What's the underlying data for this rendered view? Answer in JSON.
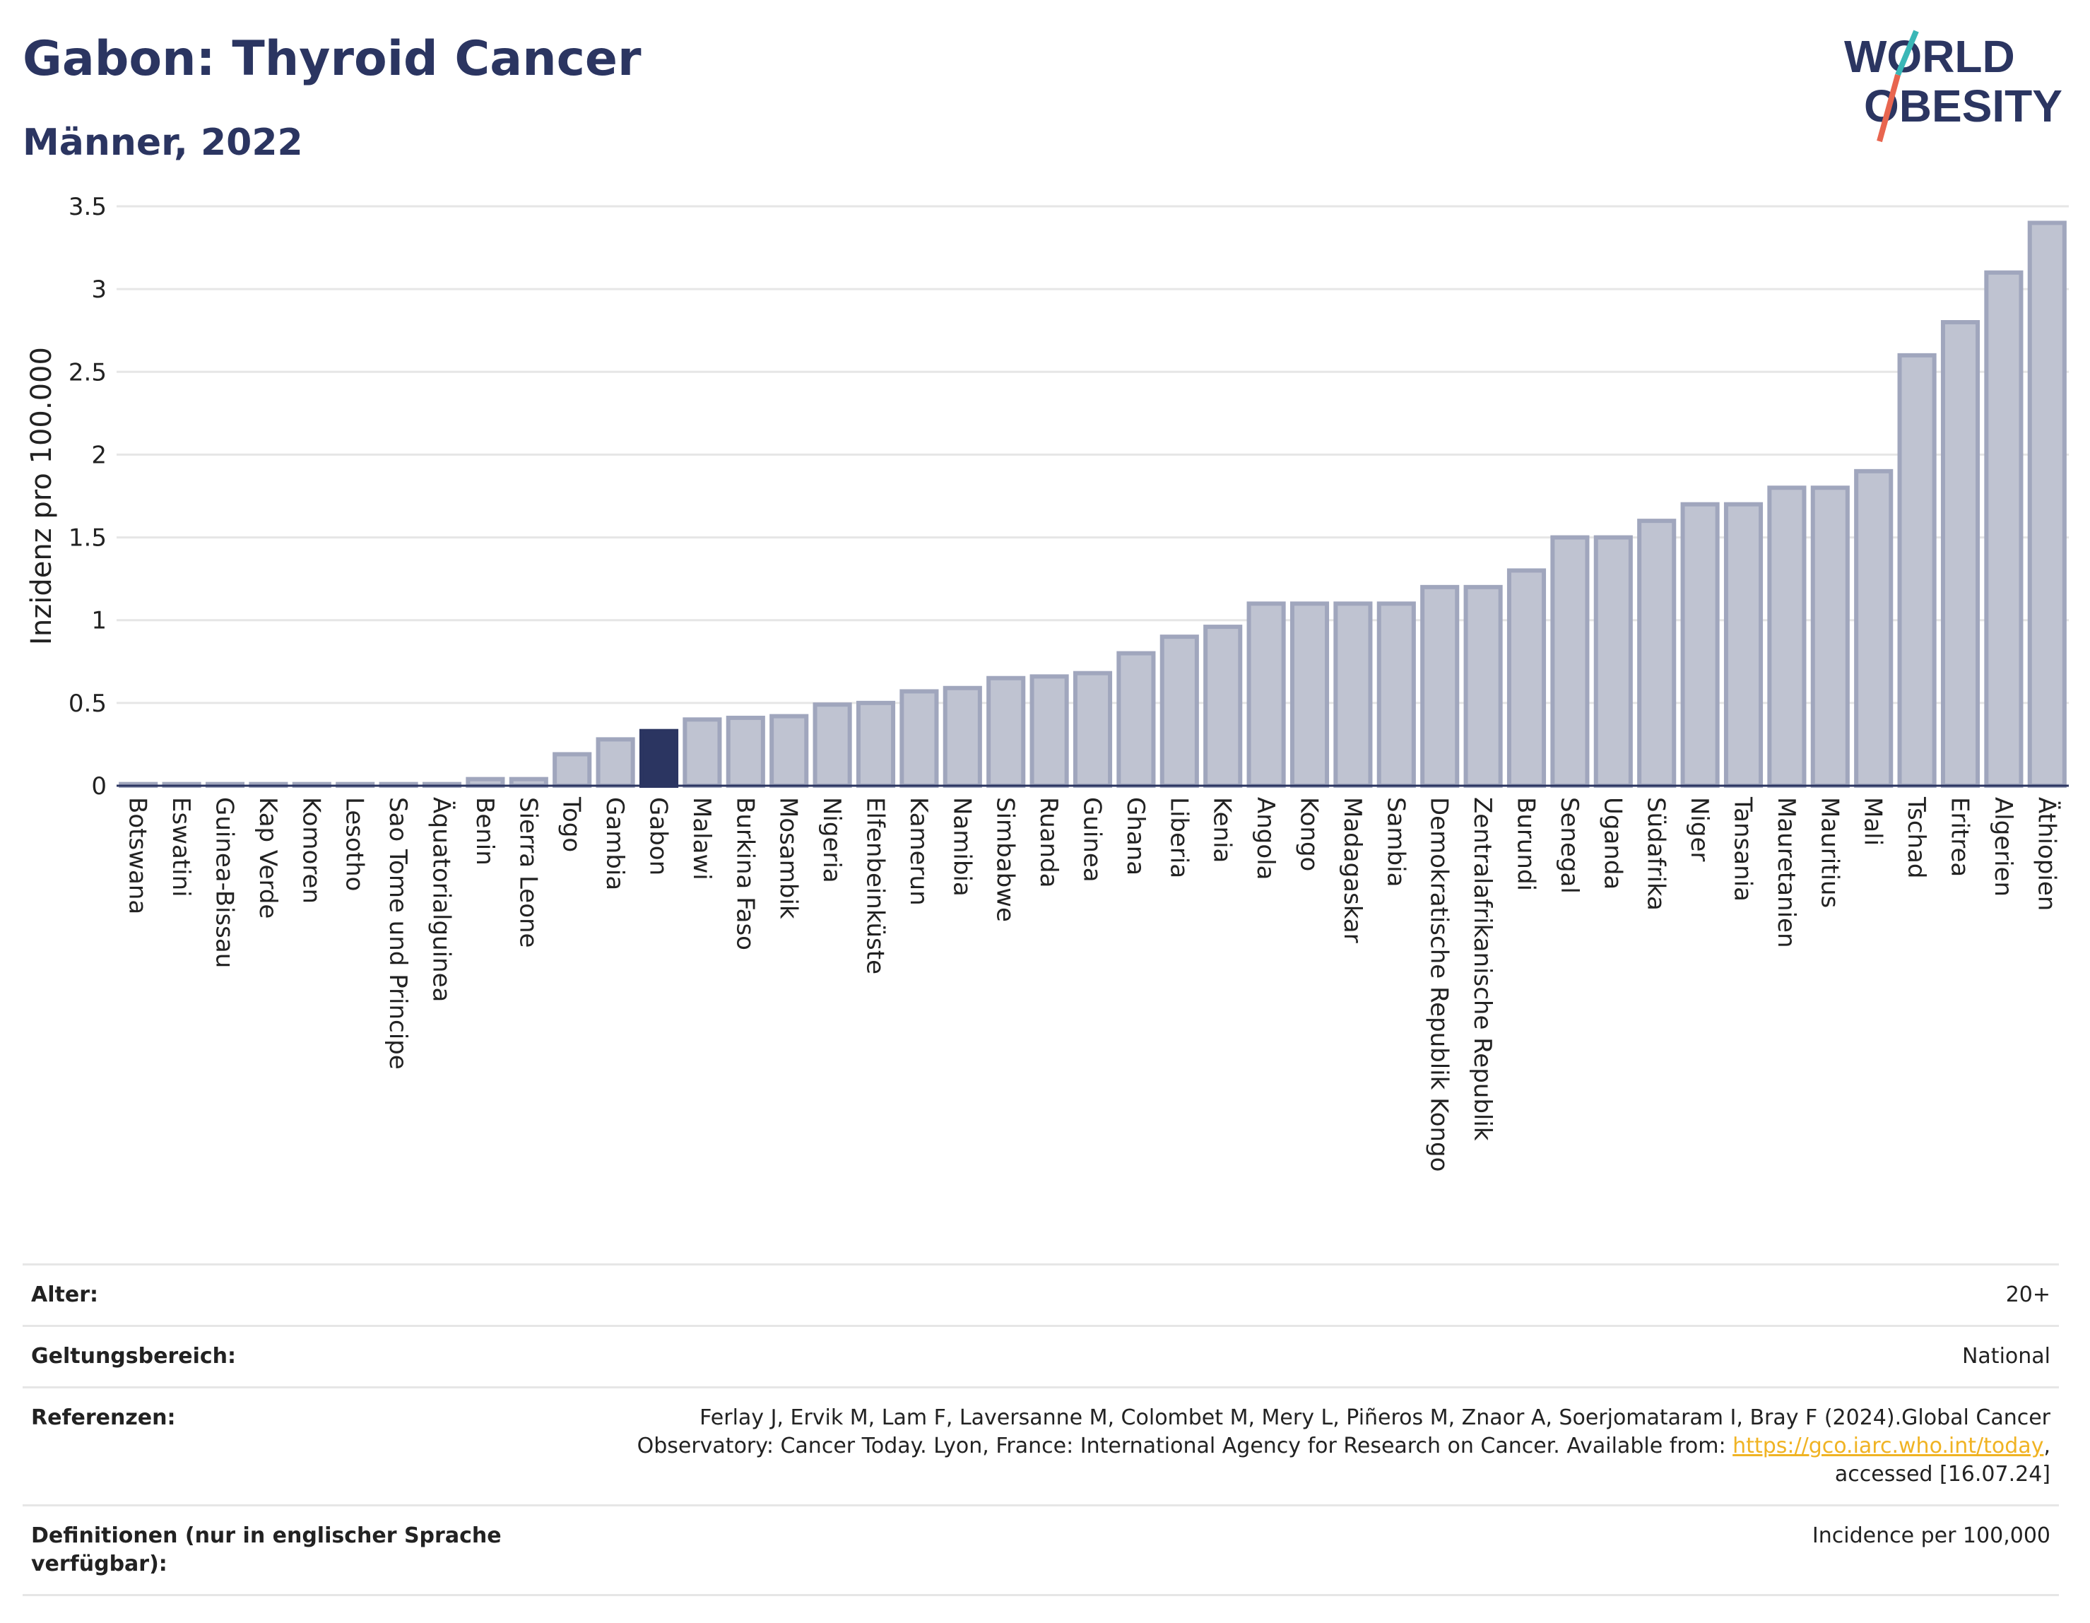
{
  "title": "Gabon: Thyroid Cancer",
  "subtitle": "Männer, 2022",
  "logo": {
    "line1": "WORLD",
    "line2": "OBESITY"
  },
  "colors": {
    "bar": "#bfc3d1",
    "bar_stroke": "#a0a6bd",
    "highlight": "#2b3561",
    "grid": "#e6e6e6",
    "logo_teal": "#3ab7b7",
    "logo_red": "#e8654f"
  },
  "chart_data": {
    "type": "bar",
    "ylabel": "Inzidenz pro 100.000",
    "ylim": [
      0,
      3.5
    ],
    "yticks": [
      "0",
      "0.5",
      "1",
      "1.5",
      "2",
      "2.5",
      "3",
      "3.5"
    ],
    "highlight": "Gabon",
    "categories": [
      "Botswana",
      "Eswatini",
      "Guinea-Bissau",
      "Kap Verde",
      "Komoren",
      "Lesotho",
      "Sao Tome und Principe",
      "Äquatorialguinea",
      "Benin",
      "Sierra Leone",
      "Togo",
      "Gambia",
      "Gabon",
      "Malawi",
      "Burkina Faso",
      "Mosambik",
      "Nigeria",
      "Elfenbeinküste",
      "Kamerun",
      "Namibia",
      "Simbabwe",
      "Ruanda",
      "Guinea",
      "Ghana",
      "Liberia",
      "Kenia",
      "Angola",
      "Kongo",
      "Madagaskar",
      "Sambia",
      "Demokratische Republik Kongo",
      "Zentralafrikanische Republik",
      "Burundi",
      "Senegal",
      "Uganda",
      "Südafrika",
      "Niger",
      "Tansania",
      "Mauretanien",
      "Mauritius",
      "Mali",
      "Tschad",
      "Eritrea",
      "Algerien",
      "Äthiopien"
    ],
    "values": [
      0.01,
      0.01,
      0.01,
      0.01,
      0.01,
      0.01,
      0.01,
      0.01,
      0.04,
      0.04,
      0.19,
      0.28,
      0.33,
      0.4,
      0.41,
      0.42,
      0.49,
      0.5,
      0.57,
      0.59,
      0.65,
      0.66,
      0.68,
      0.8,
      0.9,
      0.96,
      1.1,
      1.1,
      1.1,
      1.1,
      1.2,
      1.2,
      1.3,
      1.5,
      1.5,
      1.6,
      1.7,
      1.7,
      1.8,
      1.8,
      1.9,
      2.6,
      2.8,
      3.1,
      3.4
    ]
  },
  "info": {
    "age_label": "Alter:",
    "age_value": "20+",
    "scope_label": "Geltungsbereich:",
    "scope_value": "National",
    "ref_label": "Referenzen:",
    "ref_text_1": "Ferlay J, Ervik M, Lam F, Laversanne M, Colombet M, Mery L, Piñeros M, Znaor A, Soerjomataram I, Bray F (2024).Global Cancer Observatory: Cancer Today. Lyon, France: International Agency for Research on Cancer. Available from: ",
    "ref_link": "https://gco.iarc.who.int/today",
    "ref_text_2": ", accessed [16.07.24]",
    "def_label": "Definitionen (nur in englischer Sprache verfügbar):",
    "def_value": "Incidence per 100,000"
  }
}
